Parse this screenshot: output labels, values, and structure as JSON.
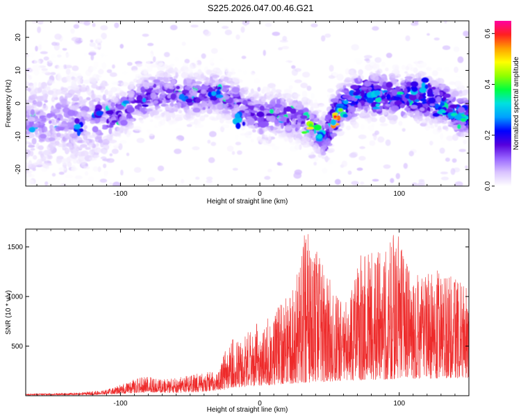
{
  "title": "S225.2026.047.00.46.G21",
  "colors": {
    "snr_line": "#ee2a2a",
    "heat_dark": "#4400cc",
    "heat_light": "#ddccff"
  },
  "chart_data": [
    {
      "type": "heatmap",
      "title": "S225.2026.047.00.46.G21",
      "xlabel": "Height of straight line (km)",
      "ylabel": "Frequency (Hz)",
      "xlim": [
        -168,
        150
      ],
      "ylim": [
        -25,
        25
      ],
      "xticks": [
        -100,
        0,
        100
      ],
      "yticks": [
        -20,
        -10,
        0,
        10,
        20
      ],
      "xtick_labels": [
        "-100",
        "0",
        "100"
      ],
      "ytick_labels": [
        "-20",
        "-10",
        "0",
        "10",
        "20"
      ],
      "colorbar": {
        "label": "Normalized spectral amplitude",
        "range": [
          0.0,
          0.65
        ],
        "ticks": [
          0.0,
          0.2,
          0.4,
          0.6
        ],
        "tick_labels": [
          "0.0",
          "0.2",
          "0.4",
          "0.6"
        ],
        "stops": [
          "#ffffff",
          "#d9c3ff",
          "#9966ff",
          "#5500dd",
          "#0000ff",
          "#00a0ff",
          "#00e0e0",
          "#00ff40",
          "#90ff00",
          "#ffff00",
          "#ffa000",
          "#ff2020",
          "#ff00a0"
        ]
      },
      "ridge": {
        "description": "approximate centre frequency of the main power band vs height",
        "x": [
          -150,
          -120,
          -100,
          -90,
          -75,
          -60,
          -45,
          -30,
          -15,
          0,
          15,
          30,
          40,
          47,
          52,
          60,
          75,
          90,
          105,
          120,
          130,
          140,
          150
        ],
        "y": [
          -6,
          -5,
          -3,
          0,
          3,
          3,
          2,
          3,
          0,
          -4,
          -3,
          -5,
          -8,
          -11,
          -5,
          0,
          3,
          2,
          2,
          2,
          0,
          -3,
          -4
        ],
        "peak_amplitude": 0.65
      }
    },
    {
      "type": "line",
      "xlabel": "Height of straight line (km)",
      "ylabel": "SNR (10 * v/v)",
      "xlim": [
        -168,
        150
      ],
      "ylim": [
        0,
        1680
      ],
      "xticks": [
        -100,
        0,
        100
      ],
      "yticks": [
        500,
        1000,
        1500
      ],
      "xtick_labels": [
        "-100",
        "0",
        "100"
      ],
      "ytick_labels": [
        "500",
        "1000",
        "1500"
      ],
      "envelope": {
        "description": "approximate upper envelope of the SNR trace",
        "x": [
          -168,
          -130,
          -110,
          -100,
          -85,
          -70,
          -55,
          -40,
          -30,
          -22,
          -10,
          0,
          10,
          20,
          33,
          45,
          60,
          72,
          85,
          98,
          110,
          125,
          140,
          150
        ],
        "y": [
          20,
          30,
          60,
          110,
          200,
          170,
          190,
          240,
          250,
          560,
          620,
          780,
          850,
          1000,
          1670,
          1350,
          900,
          1450,
          1450,
          1660,
          1200,
          1300,
          1180,
          1100
        ]
      },
      "baseline": {
        "x": [
          -168,
          -120,
          -100,
          -80,
          -60,
          -40,
          -25,
          -22,
          0,
          30,
          60,
          100,
          150
        ],
        "y": [
          5,
          8,
          20,
          35,
          30,
          40,
          60,
          80,
          100,
          130,
          150,
          170,
          180
        ]
      }
    }
  ]
}
